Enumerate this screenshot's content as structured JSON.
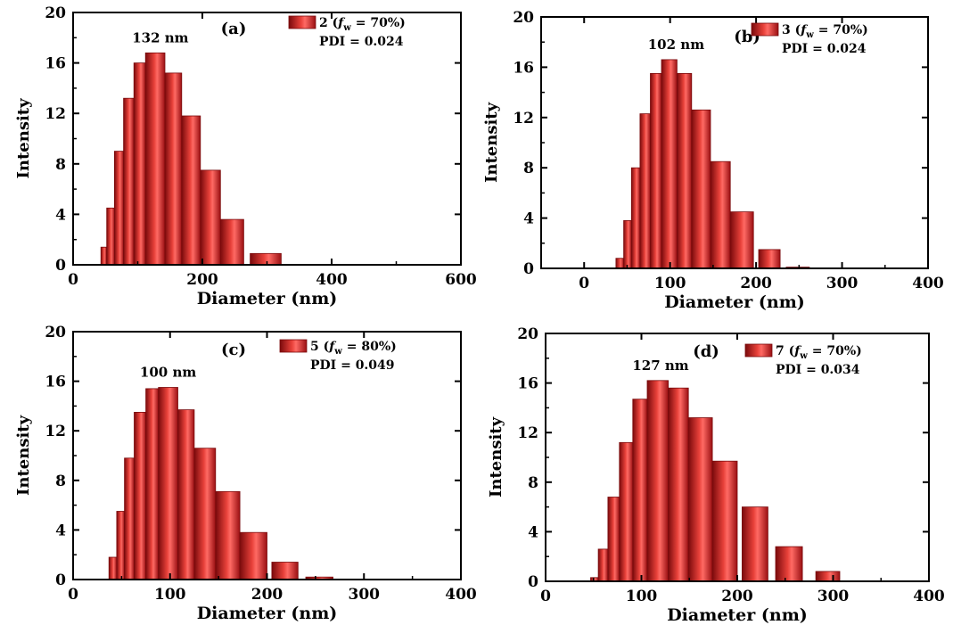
{
  "figure": {
    "accent_color": "#d0191c",
    "bar_dark": "#7a0a0c",
    "bar_light": "#ff6a64",
    "axis_color": "#000000"
  },
  "chart_data": [
    {
      "type": "bar",
      "panel_label": "(a)",
      "legend_prefix": "2 (",
      "legend_f": "f",
      "legend_sub": "w",
      "legend_suffix": " = 70%)",
      "pdi": "PDI = 0.024",
      "peak_label": "132 nm",
      "peak_x": 135,
      "xlabel": "Diameter (nm)",
      "ylabel": "Intensity",
      "xlim": [
        0,
        600
      ],
      "ylim": [
        0,
        20
      ],
      "xticks": [
        0,
        200,
        400,
        600
      ],
      "yticks": [
        0,
        4,
        8,
        12,
        16,
        20
      ],
      "bins": [
        {
          "left": 43,
          "right": 52,
          "value": 1.4
        },
        {
          "left": 52,
          "right": 64,
          "value": 4.5
        },
        {
          "left": 64,
          "right": 78,
          "value": 9.0
        },
        {
          "left": 78,
          "right": 94,
          "value": 13.2
        },
        {
          "left": 94,
          "right": 112,
          "value": 16.0
        },
        {
          "left": 112,
          "right": 142,
          "value": 16.8
        },
        {
          "left": 142,
          "right": 168,
          "value": 15.2
        },
        {
          "left": 168,
          "right": 197,
          "value": 11.8
        },
        {
          "left": 197,
          "right": 228,
          "value": 7.5
        },
        {
          "left": 228,
          "right": 264,
          "value": 3.6
        },
        {
          "left": 274,
          "right": 322,
          "value": 0.9
        }
      ]
    },
    {
      "type": "bar",
      "panel_label": "(b)",
      "legend_prefix": "3 (",
      "legend_f": "f",
      "legend_sub": "w",
      "legend_suffix": " = 70%)",
      "pdi": "PDI = 0.024",
      "peak_label": "102 nm",
      "peak_x": 107,
      "xlabel": "Diameter (nm)",
      "ylabel": "Intensity",
      "xlim": [
        -50,
        400
      ],
      "ylim": [
        0,
        20
      ],
      "xticks": [
        0,
        100,
        200,
        300,
        400
      ],
      "yticks": [
        0,
        4,
        8,
        12,
        16,
        20
      ],
      "bins": [
        {
          "left": 37,
          "right": 46,
          "value": 0.8
        },
        {
          "left": 46,
          "right": 55,
          "value": 3.8
        },
        {
          "left": 55,
          "right": 65,
          "value": 8.0
        },
        {
          "left": 65,
          "right": 77,
          "value": 12.3
        },
        {
          "left": 77,
          "right": 90,
          "value": 15.5
        },
        {
          "left": 90,
          "right": 108,
          "value": 16.6
        },
        {
          "left": 108,
          "right": 125,
          "value": 15.5
        },
        {
          "left": 125,
          "right": 147,
          "value": 12.6
        },
        {
          "left": 147,
          "right": 170,
          "value": 8.5
        },
        {
          "left": 170,
          "right": 197,
          "value": 4.5
        },
        {
          "left": 203,
          "right": 228,
          "value": 1.5
        },
        {
          "left": 235,
          "right": 262,
          "value": 0.1
        }
      ]
    },
    {
      "type": "bar",
      "panel_label": "(c)",
      "legend_prefix": "5 (",
      "legend_f": "f",
      "legend_sub": "w",
      "legend_suffix": " = 80%)",
      "pdi": "PDI = 0.049",
      "peak_label": "100 nm",
      "peak_x": 98,
      "xlabel": "Diameter (nm)",
      "ylabel": "Intensity",
      "xlim": [
        0,
        400
      ],
      "ylim": [
        0,
        20
      ],
      "xticks": [
        0,
        100,
        200,
        300,
        400
      ],
      "yticks": [
        0,
        4,
        8,
        12,
        16,
        20
      ],
      "bins": [
        {
          "left": 37,
          "right": 45,
          "value": 1.8
        },
        {
          "left": 45,
          "right": 53,
          "value": 5.5
        },
        {
          "left": 53,
          "right": 63,
          "value": 9.8
        },
        {
          "left": 63,
          "right": 75,
          "value": 13.5
        },
        {
          "left": 75,
          "right": 88,
          "value": 15.4
        },
        {
          "left": 88,
          "right": 108,
          "value": 15.5
        },
        {
          "left": 108,
          "right": 125,
          "value": 13.7
        },
        {
          "left": 125,
          "right": 147,
          "value": 10.6
        },
        {
          "left": 147,
          "right": 172,
          "value": 7.1
        },
        {
          "left": 172,
          "right": 200,
          "value": 3.8
        },
        {
          "left": 205,
          "right": 232,
          "value": 1.4
        },
        {
          "left": 240,
          "right": 268,
          "value": 0.2
        }
      ]
    },
    {
      "type": "bar",
      "panel_label": "(d)",
      "legend_prefix": "7 (",
      "legend_f": "f",
      "legend_sub": "w",
      "legend_suffix": " = 70%)",
      "pdi": "PDI = 0.034",
      "peak_label": "127 nm",
      "peak_x": 120,
      "xlabel": "Diameter (nm)",
      "ylabel": "Intensity",
      "xlim": [
        0,
        400
      ],
      "ylim": [
        0,
        20
      ],
      "xticks": [
        0,
        100,
        200,
        300,
        400
      ],
      "yticks": [
        0,
        4,
        8,
        12,
        16,
        20
      ],
      "bins": [
        {
          "left": 47,
          "right": 55,
          "value": 0.3
        },
        {
          "left": 55,
          "right": 65,
          "value": 2.6
        },
        {
          "left": 65,
          "right": 77,
          "value": 6.8
        },
        {
          "left": 77,
          "right": 91,
          "value": 11.2
        },
        {
          "left": 91,
          "right": 106,
          "value": 14.7
        },
        {
          "left": 106,
          "right": 128,
          "value": 16.2
        },
        {
          "left": 128,
          "right": 149,
          "value": 15.6
        },
        {
          "left": 149,
          "right": 174,
          "value": 13.2
        },
        {
          "left": 174,
          "right": 200,
          "value": 9.7
        },
        {
          "left": 205,
          "right": 232,
          "value": 6.0
        },
        {
          "left": 240,
          "right": 268,
          "value": 2.8
        },
        {
          "left": 282,
          "right": 307,
          "value": 0.8
        }
      ]
    }
  ]
}
